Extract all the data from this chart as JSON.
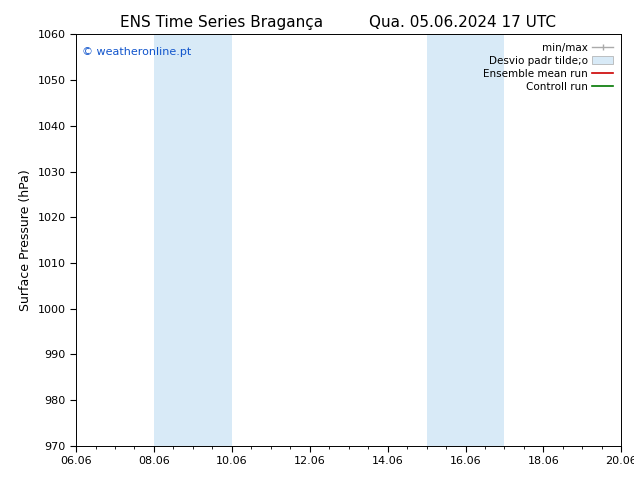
{
  "title_left": "ENS Time Series Bragança",
  "title_right": "Qua. 05.06.2024 17 UTC",
  "ylabel": "Surface Pressure (hPa)",
  "ylim": [
    970,
    1060
  ],
  "yticks": [
    970,
    980,
    990,
    1000,
    1010,
    1020,
    1030,
    1040,
    1050,
    1060
  ],
  "xlim_start": 0.0,
  "xlim_end": 14.0,
  "xtick_labels": [
    "06.06",
    "08.06",
    "10.06",
    "12.06",
    "14.06",
    "16.06",
    "18.06",
    "20.06"
  ],
  "xtick_positions": [
    0,
    2,
    4,
    6,
    8,
    10,
    12,
    14
  ],
  "shaded_bands": [
    {
      "xmin": 2.0,
      "xmax": 4.0,
      "color": "#d8eaf7"
    },
    {
      "xmin": 9.0,
      "xmax": 11.0,
      "color": "#d8eaf7"
    }
  ],
  "watermark": "© weatheronline.pt",
  "legend_labels": [
    "min/max",
    "Desvio padr tilde;o",
    "Ensemble mean run",
    "Controll run"
  ],
  "background_color": "#ffffff",
  "plot_bg_color": "#ffffff",
  "title_fontsize": 11,
  "ylabel_fontsize": 9,
  "tick_fontsize": 8,
  "legend_fontsize": 7.5
}
